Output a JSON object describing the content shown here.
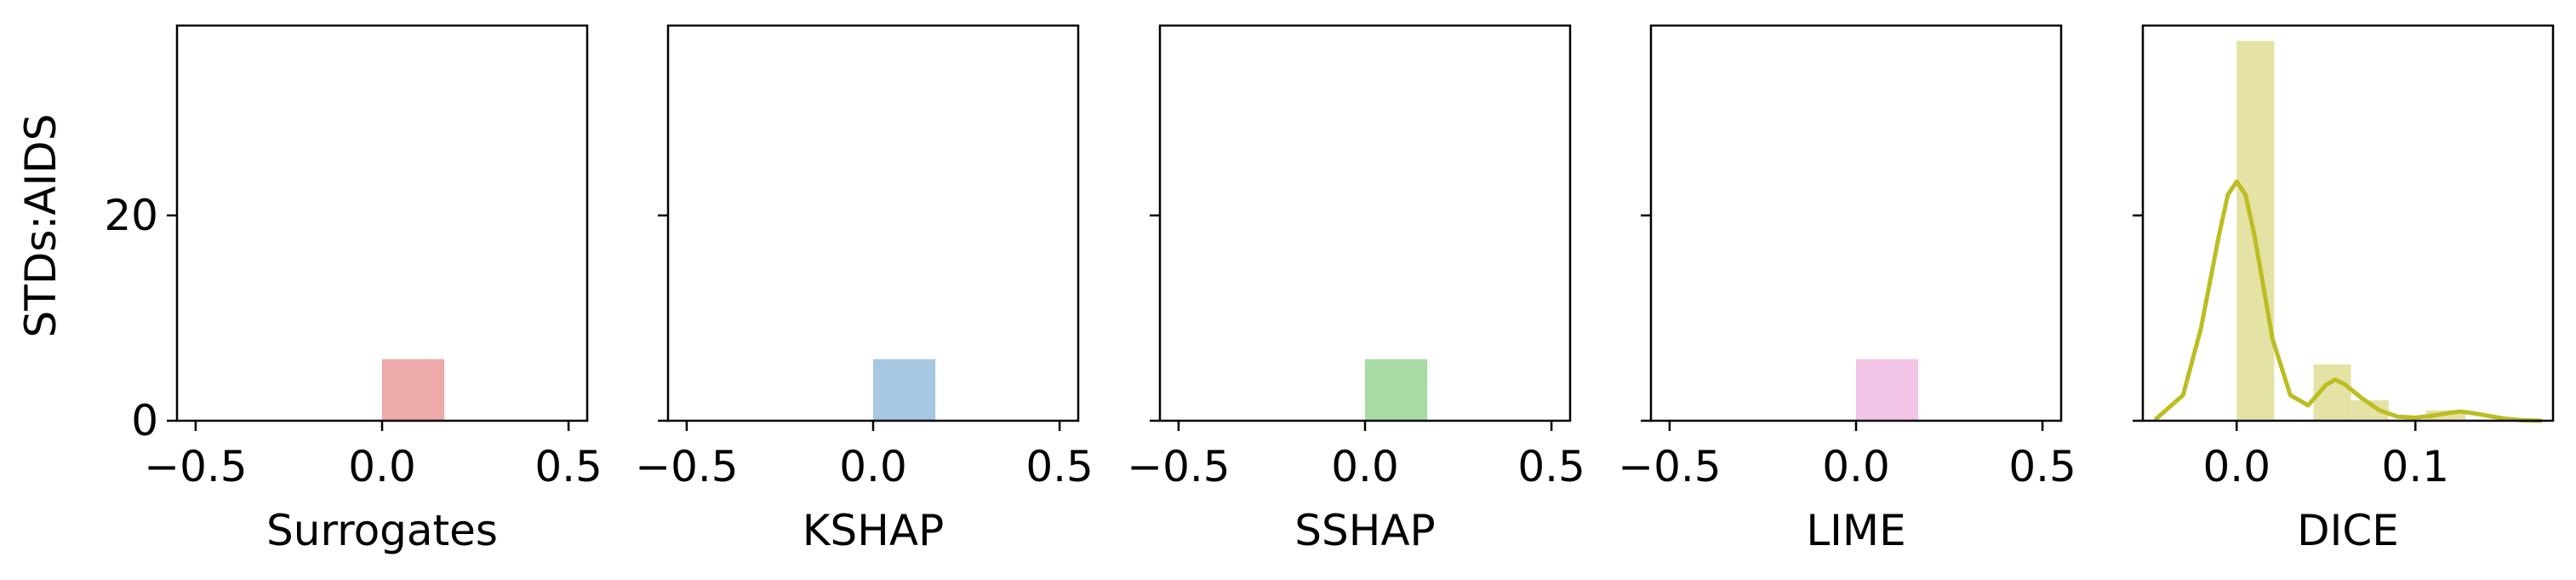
{
  "chart_data": {
    "type": "bar",
    "ylabel": "STDs:AIDS",
    "yticks": [
      0,
      20
    ],
    "ylim": [
      0,
      38.5
    ],
    "panels": [
      {
        "xlabel": "Surrogates",
        "color": "#eea9aa",
        "xlim": [
          -0.55,
          0.55
        ],
        "xticks": [
          -0.5,
          0.0,
          0.5
        ],
        "xtick_labels": [
          "−0.5",
          "0.0",
          "0.5"
        ],
        "bars": [
          {
            "x0": 0.0,
            "x1": 0.167,
            "height": 6
          }
        ],
        "kde": null
      },
      {
        "xlabel": "KSHAP",
        "color": "#a6c8e2",
        "xlim": [
          -0.55,
          0.55
        ],
        "xticks": [
          -0.5,
          0.0,
          0.5
        ],
        "xtick_labels": [
          "−0.5",
          "0.0",
          "0.5"
        ],
        "bars": [
          {
            "x0": 0.0,
            "x1": 0.167,
            "height": 6
          }
        ],
        "kde": null
      },
      {
        "xlabel": "SSHAP",
        "color": "#a9dba5",
        "xlim": [
          -0.55,
          0.55
        ],
        "xticks": [
          -0.5,
          0.0,
          0.5
        ],
        "xtick_labels": [
          "−0.5",
          "0.0",
          "0.5"
        ],
        "bars": [
          {
            "x0": 0.0,
            "x1": 0.167,
            "height": 6
          }
        ],
        "kde": null
      },
      {
        "xlabel": "LIME",
        "color": "#f2c4e5",
        "xlim": [
          -0.55,
          0.55
        ],
        "xticks": [
          -0.5,
          0.0,
          0.5
        ],
        "xtick_labels": [
          "−0.5",
          "0.0",
          "0.5"
        ],
        "bars": [
          {
            "x0": 0.0,
            "x1": 0.167,
            "height": 6
          }
        ],
        "kde": null
      },
      {
        "xlabel": "DICE",
        "color": "#e4e3a5",
        "line_color": "#bcbd22",
        "xlim": [
          -0.0525,
          0.177
        ],
        "xticks": [
          0.0,
          0.1
        ],
        "xtick_labels": [
          "0.0",
          "0.1"
        ],
        "bars": [
          {
            "x0": 0.0,
            "x1": 0.021,
            "height": 37
          },
          {
            "x0": 0.043,
            "x1": 0.064,
            "height": 5.5
          },
          {
            "x0": 0.064,
            "x1": 0.085,
            "height": 2
          },
          {
            "x0": 0.106,
            "x1": 0.128,
            "height": 1
          }
        ],
        "kde": {
          "x": [
            -0.045,
            -0.03,
            -0.02,
            -0.01,
            -0.005,
            0.0,
            0.005,
            0.01,
            0.015,
            0.02,
            0.03,
            0.04,
            0.05,
            0.055,
            0.06,
            0.07,
            0.08,
            0.09,
            0.1,
            0.11,
            0.12,
            0.125,
            0.13,
            0.14,
            0.15,
            0.16,
            0.17
          ],
          "y": [
            0.2,
            2.5,
            9,
            18,
            22,
            23.3,
            22,
            18,
            13,
            8,
            2.5,
            1.5,
            3.5,
            4,
            3.6,
            2.2,
            1,
            0.4,
            0.3,
            0.5,
            0.8,
            0.9,
            0.8,
            0.5,
            0.2,
            0.05,
            0.0
          ]
        }
      }
    ]
  }
}
